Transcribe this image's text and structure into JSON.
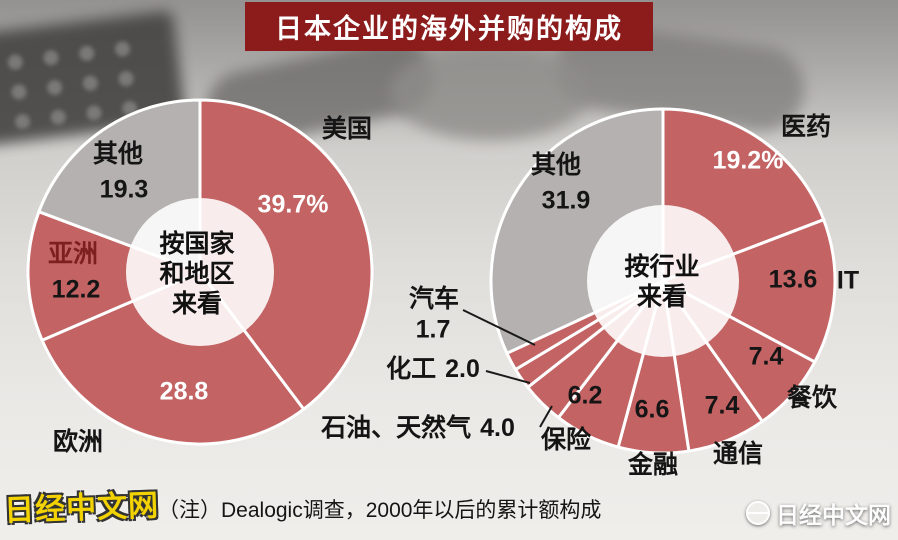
{
  "title_banner": {
    "text": "日本企业的海外并购的构成"
  },
  "footnote": {
    "text": "（注）Dealogic调查，2000年以后的累计额构成"
  },
  "watermarks": {
    "left": "日经中文网",
    "right": "日经中文网"
  },
  "colors": {
    "slice_red": "#c36363",
    "slice_gray": "#b4b1b0",
    "banner_bg": "#8c1c1c",
    "banner_text": "#ffffff",
    "label_dark": "#151515",
    "label_white": "#ffffff",
    "asia_label": "#7d1f1f"
  },
  "chart_data": [
    {
      "type": "pie",
      "title": "按国家和地区来看",
      "center_label_lines": [
        "按国家",
        "和地区",
        "来看"
      ],
      "unit": "%",
      "legend_position": "none",
      "segments": [
        {
          "label": "美国",
          "value": 39.7,
          "display": "39.7%",
          "color_key": "red"
        },
        {
          "label": "欧洲",
          "value": 28.8,
          "display": "28.8",
          "color_key": "red"
        },
        {
          "label": "亚洲",
          "value": 12.2,
          "display": "12.2",
          "color_key": "red"
        },
        {
          "label": "其他",
          "value": 19.3,
          "display": "19.3",
          "color_key": "gray"
        }
      ]
    },
    {
      "type": "pie",
      "title": "按行业来看",
      "center_label_lines": [
        "按行业",
        "来看"
      ],
      "unit": "%",
      "legend_position": "none",
      "segments": [
        {
          "label": "医药",
          "value": 19.2,
          "display": "19.2%",
          "color_key": "red"
        },
        {
          "label": "IT",
          "value": 13.6,
          "display": "13.6",
          "color_key": "red"
        },
        {
          "label": "餐饮",
          "value": 7.4,
          "display": "7.4",
          "color_key": "red"
        },
        {
          "label": "通信",
          "value": 7.4,
          "display": "7.4",
          "color_key": "red"
        },
        {
          "label": "金融",
          "value": 6.6,
          "display": "6.6",
          "color_key": "red"
        },
        {
          "label": "保险",
          "value": 6.2,
          "display": "6.2",
          "color_key": "red"
        },
        {
          "label": "石油、天然气",
          "value": 4.0,
          "display": "4.0",
          "color_key": "red"
        },
        {
          "label": "化工",
          "value": 2.0,
          "display": "2.0",
          "color_key": "red"
        },
        {
          "label": "汽车",
          "value": 1.7,
          "display": "1.7",
          "color_key": "red"
        },
        {
          "label": "其他",
          "value": 31.9,
          "display": "31.9",
          "color_key": "gray"
        }
      ]
    }
  ]
}
